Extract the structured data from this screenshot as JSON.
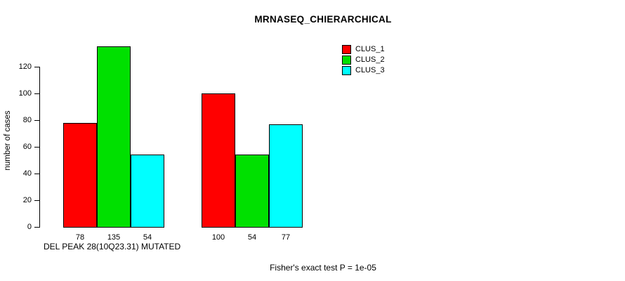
{
  "title": "MRNASEQ_CHIERARCHICAL",
  "ylabel": "number of cases",
  "xlabel": "DEL PEAK 28(10Q23.31) MUTATED",
  "footer": "Fisher's exact test P = 1e-05",
  "legend": [
    {
      "label": "CLUS_1",
      "color": "#FF0000"
    },
    {
      "label": "CLUS_2",
      "color": "#00E000"
    },
    {
      "label": "CLUS_3",
      "color": "#00FFFF"
    }
  ],
  "chart_data": {
    "type": "bar",
    "title": "MRNASEQ_CHIERARCHICAL",
    "xlabel": "DEL PEAK 28(10Q23.31) MUTATED",
    "ylabel": "number of cases",
    "annotation": "Fisher's exact test P = 1e-05",
    "legend_position": "top-right",
    "grid": false,
    "ylim": [
      0,
      135
    ],
    "yticks": [
      0,
      20,
      40,
      60,
      80,
      100,
      120
    ],
    "categories": [
      "group1",
      "group2"
    ],
    "series": [
      {
        "name": "CLUS_1",
        "color": "#FF0000",
        "values": [
          78,
          100
        ]
      },
      {
        "name": "CLUS_2",
        "color": "#00E000",
        "values": [
          135,
          54
        ]
      },
      {
        "name": "CLUS_3",
        "color": "#00FFFF",
        "values": [
          54,
          77
        ]
      }
    ],
    "bar_labels": [
      [
        "78",
        "135",
        "54"
      ],
      [
        "100",
        "54",
        "77"
      ]
    ]
  }
}
